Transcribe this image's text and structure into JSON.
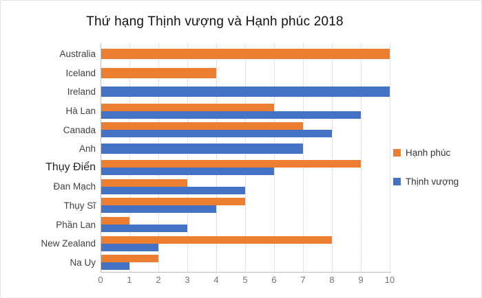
{
  "chart_data": {
    "type": "bar",
    "orientation": "horizontal",
    "title": "Thứ hạng Thịnh vượng và Hạnh phúc 2018",
    "categories": [
      "Australia",
      "Iceland",
      "Ireland",
      "Hà Lan",
      "Canada",
      "Anh",
      "Thụy Điển",
      "Đan Mạch",
      "Thụy Sĩ",
      "Phần Lan",
      "New Zealand",
      "Na Uy"
    ],
    "series": [
      {
        "name": "Hạnh phúc",
        "color": "#ED7D31",
        "values": [
          10,
          4,
          null,
          6,
          7,
          null,
          9,
          3,
          5,
          1,
          8,
          2
        ]
      },
      {
        "name": "Thịnh vượng",
        "color": "#4472C4",
        "values": [
          null,
          null,
          10,
          9,
          8,
          7,
          6,
          5,
          4,
          3,
          2,
          1
        ]
      }
    ],
    "x_ticks": [
      0,
      1,
      2,
      3,
      4,
      5,
      6,
      7,
      8,
      9,
      10
    ],
    "xlim": [
      0,
      10
    ],
    "grid": "vertical-dotted",
    "legend_position": "right",
    "emphasized_category": "Thụy Điển",
    "colors": {
      "axis": "#BFBFBF",
      "gridline": "#C9C9C9",
      "tick_label": "#737373",
      "category_label": "#3F3F3F",
      "title": "#111111",
      "background": "#FFFFFF"
    }
  }
}
